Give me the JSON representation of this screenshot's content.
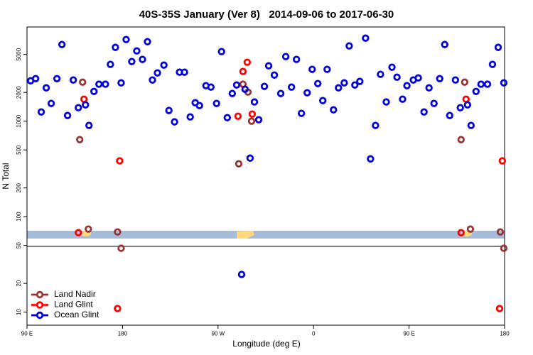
{
  "chart_data": {
    "type": "scatter",
    "title": "40S-35S January (Ver 8)   2014-09-06 to 2017-06-30",
    "x_label": "Longitude (deg E)",
    "y_label": "N Total",
    "xlim": [
      90,
      540
    ],
    "xticks": [
      {
        "value": 90,
        "label": "90 E"
      },
      180,
      {
        "value": 270,
        "label": "90 W"
      },
      {
        "value": 360,
        "label": "0"
      },
      {
        "value": 450,
        "label": "90 E"
      },
      {
        "value": 540,
        "label": "180"
      }
    ],
    "ylim": [
      7.3,
      9700
    ],
    "yscale": "log",
    "yticks": [
      10,
      20,
      50,
      100,
      200,
      500,
      1000,
      2000,
      5000
    ],
    "legend": "lower left",
    "series": [
      {
        "name": "Land Nadir",
        "color": "#993333",
        "x": [
          139.7,
          142.4,
          147.8,
          175.3,
          178.7,
          289.5,
          293.5,
          298.2,
          301.6,
          499.0,
          502.4,
          507.8,
          536.0,
          539.3
        ],
        "values": [
          641,
          2565,
          74.1,
          69.2,
          46.7,
          358,
          2440,
          2018,
          1000,
          641,
          2565,
          74.1,
          69.2,
          46.7
        ]
      },
      {
        "name": "Land Glint",
        "color": "#ff0000",
        "x": [
          138.4,
          143.7,
          177.3,
          175.3,
          288.8,
          293.5,
          297.5,
          302.2,
          499.0,
          503.7,
          537.9,
          535.3
        ],
        "values": [
          68.0,
          1700,
          384,
          10.9,
          1127,
          3315,
          4140,
          1187,
          68.0,
          1700,
          384,
          10.9
        ]
      },
      {
        "name": "Ocean Glint",
        "color": "#0000dd",
        "x": [
          93.4,
          98.1,
          103.4,
          108.1,
          112.8,
          118.2,
          122.9,
          128.2,
          133.6,
          138.4,
          145.1,
          148.4,
          153.1,
          157.8,
          163.9,
          168.6,
          173.3,
          178.7,
          183.4,
          188.7,
          193.4,
          198.8,
          203.5,
          208.2,
          212.9,
          219.0,
          223.7,
          229.0,
          233.7,
          238.4,
          243.8,
          248.5,
          252.5,
          258.6,
          263.3,
          268.6,
          273.3,
          278.7,
          283.4,
          287.5,
          292.2,
          295.5,
          300.2,
          304.3,
          308.3,
          313.7,
          317.7,
          323.1,
          329.1,
          333.8,
          339.2,
          343.9,
          348.6,
          354.0,
          358.7,
          364.0,
          368.7,
          372.8,
          378.8,
          383.5,
          388.9,
          393.6,
          398.9,
          403.6,
          409.0,
          413.7,
          418.4,
          423.1,
          428.5,
          433.9,
          438.6,
          443.9,
          448.0,
          454.0,
          458.7,
          464.1,
          468.8,
          473.5,
          478.9,
          483.6,
          488.3,
          493.7,
          498.3,
          505.1,
          508.4,
          513.1,
          517.8,
          523.9,
          528.6,
          534.0,
          539.3
        ],
        "values": [
          2650,
          2790,
          1250,
          2235,
          1535,
          2790,
          6350,
          1147,
          2700,
          1385,
          1483,
          902,
          2050,
          2440,
          2440,
          3935,
          5930,
          2520,
          7160,
          4215,
          5445,
          4435,
          6800,
          2700,
          3205,
          3865,
          1294,
          984,
          3260,
          3260,
          1109,
          1560,
          1458,
          2355,
          2275,
          1535,
          5355,
          1089,
          1950,
          2395,
          24.8,
          2160,
          410,
          1590,
          1035,
          2315,
          3800,
          3045,
          1950,
          4750,
          2275,
          4435,
          1208,
          1985,
          3490,
          2480,
          1643,
          3490,
          1315,
          2235,
          2520,
          6140,
          2395,
          2610,
          7410,
          403,
          902,
          3095,
          1590,
          3675,
          2890,
          1700,
          2355,
          2700,
          2840,
          1250,
          2235,
          1535,
          2790,
          6350,
          1147,
          2700,
          1385,
          1483,
          902,
          2050,
          2440,
          2440,
          3935,
          5930,
          2520
        ]
      }
    ]
  }
}
